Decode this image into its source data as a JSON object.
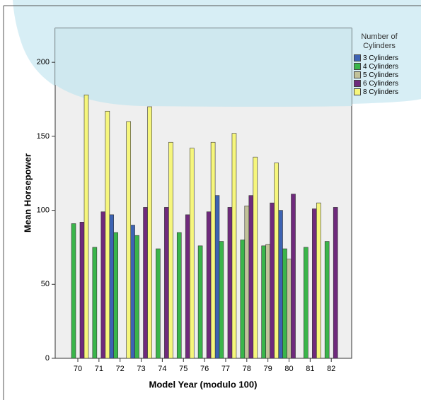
{
  "chart_data": {
    "type": "bar",
    "x_label": "Model Year (modulo 100)",
    "y_label": "Mean Horsepower",
    "legend_title": "Number of Cylinders",
    "categories": [
      "70",
      "71",
      "72",
      "73",
      "74",
      "75",
      "76",
      "77",
      "78",
      "79",
      "80",
      "81",
      "82"
    ],
    "series": [
      {
        "name": "3 Cylinders",
        "color": "#3d63b3",
        "values": [
          null,
          null,
          97,
          90,
          null,
          null,
          null,
          110,
          null,
          null,
          100,
          null,
          null
        ]
      },
      {
        "name": "4 Cylinders",
        "color": "#3ab54a",
        "values": [
          91,
          75,
          85,
          83,
          74,
          85,
          76,
          79,
          80,
          76,
          74,
          75,
          79
        ]
      },
      {
        "name": "5 Cylinders",
        "color": "#c2c29a",
        "values": [
          null,
          null,
          null,
          null,
          null,
          null,
          null,
          null,
          103,
          77,
          67,
          null,
          null
        ]
      },
      {
        "name": "6 Cylinders",
        "color": "#6f2a7c",
        "values": [
          92,
          99,
          null,
          102,
          102,
          97,
          99,
          102,
          110,
          105,
          111,
          101,
          102
        ]
      },
      {
        "name": "8 Cylinders",
        "color": "#f6f67c",
        "values": [
          178,
          167,
          160,
          170,
          146,
          142,
          146,
          152,
          136,
          132,
          null,
          105,
          null
        ]
      }
    ],
    "ylim": [
      0,
      223
    ],
    "yticks": [
      0,
      50,
      100,
      150,
      200
    ],
    "legend_position": "right"
  }
}
